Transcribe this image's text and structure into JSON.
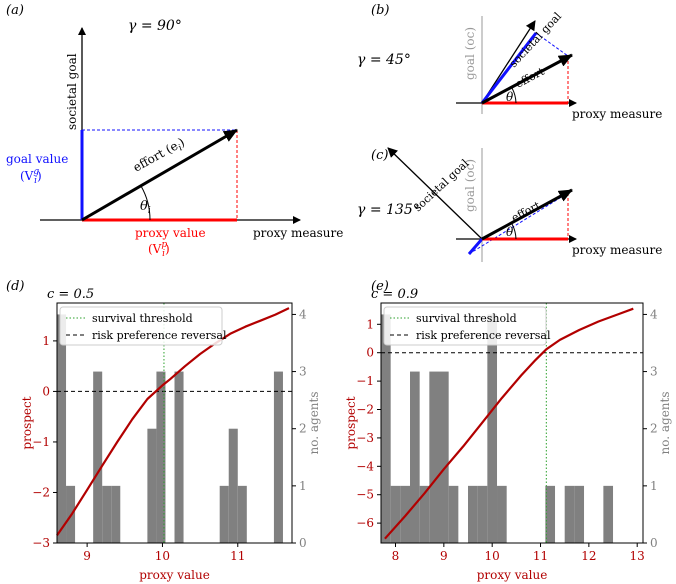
{
  "panel_labels": {
    "a": "(a)",
    "b": "(b)",
    "c": "(c)",
    "d": "(d)",
    "e": "(e)"
  },
  "colors": {
    "goal": "#1010ff",
    "proxy": "#ff0000",
    "effort": "#000000",
    "prospect": "#b20000",
    "bars": "#808080",
    "threshold": "#2ca02c"
  },
  "diagram_a": {
    "gamma": "γ = 90°",
    "xlabel": "proxy measure",
    "ylabel": "societal goal",
    "effort": "effort (e",
    "effort_sub": "i",
    "theta": "θ",
    "theta_sub": "i",
    "goal_label": "goal value",
    "goal_sym": "(V",
    "goal_sup": "g",
    "goal_sub": "i",
    "proxy_label": "proxy value",
    "proxy_sym": "(V",
    "proxy_sup": "p",
    "proxy_sub": "i",
    "close": ")"
  },
  "diagram_b": {
    "gamma": "γ = 45°",
    "xlabel": "proxy measure",
    "goal_axis": "goal (oc)",
    "goal_label": "societal goal",
    "effort": "effort",
    "theta": "θ"
  },
  "diagram_c": {
    "gamma": "γ = 135°",
    "xlabel": "proxy measure",
    "goal_axis": "goal (oc)",
    "goal_label": "societal goal",
    "effort": "effort",
    "theta": "θ"
  },
  "chart_data": [
    {
      "type": "bar",
      "panel": "d",
      "title": "c = 0.5",
      "xlabel": "proxy value",
      "ylabel": "prospect",
      "y2label": "no. agents",
      "xlim": [
        8.6,
        11.72
      ],
      "ylim": [
        -3,
        1.75
      ],
      "y2lim": [
        0,
        4.2
      ],
      "xticks": [
        9,
        10,
        11
      ],
      "yticks": [
        -3,
        -2,
        -1,
        0,
        1
      ],
      "y2ticks": [
        0,
        1,
        2,
        3,
        4
      ],
      "bins": [
        8.6,
        8.72,
        8.84,
        8.96,
        9.08,
        9.2,
        9.32,
        9.44,
        9.56,
        9.68,
        9.8,
        9.92,
        10.04,
        10.16,
        10.28,
        10.4,
        10.52,
        10.64,
        10.76,
        10.88,
        11,
        11.12,
        11.24,
        11.36,
        11.48,
        11.6
      ],
      "counts": [
        4,
        1,
        0,
        0,
        3,
        1,
        1,
        0,
        0,
        0,
        2,
        3,
        0,
        3,
        0,
        0,
        0,
        0,
        1,
        2,
        1,
        0,
        0,
        0,
        3
      ],
      "prospect_x": [
        8.6,
        8.8,
        9.0,
        9.2,
        9.4,
        9.6,
        9.8,
        10.0,
        10.1,
        10.3,
        10.5,
        10.7,
        10.9,
        11.1,
        11.3,
        11.5,
        11.68
      ],
      "prospect_y": [
        -2.85,
        -2.42,
        -1.95,
        -1.47,
        -1.0,
        -0.55,
        -0.15,
        0.12,
        0.24,
        0.5,
        0.74,
        0.95,
        1.14,
        1.28,
        1.4,
        1.52,
        1.65
      ],
      "survival_threshold": 10.02,
      "reversal": 0,
      "legend": [
        "survival threshold",
        "risk preference reversal"
      ]
    },
    {
      "type": "bar",
      "panel": "e",
      "title": "c = 0.9",
      "xlabel": "proxy value",
      "ylabel": "prospect",
      "y2label": "no. agents",
      "xlim": [
        7.7,
        13.12
      ],
      "ylim": [
        -6.7,
        1.75
      ],
      "y2lim": [
        0,
        4.2
      ],
      "xticks": [
        8,
        9,
        10,
        11,
        12,
        13
      ],
      "yticks": [
        -6,
        -5,
        -4,
        -3,
        -2,
        -1,
        0,
        1
      ],
      "y2ticks": [
        0,
        1,
        2,
        3,
        4
      ],
      "bins": [
        7.7,
        7.9,
        8.1,
        8.3,
        8.5,
        8.7,
        8.9,
        9.1,
        9.3,
        9.5,
        9.7,
        9.9,
        10.1,
        10.3,
        10.5,
        10.7,
        10.9,
        11.1,
        11.3,
        11.5,
        11.7,
        11.9,
        12.1,
        12.3,
        12.5,
        12.7,
        12.9
      ],
      "counts": [
        4,
        1,
        1,
        3,
        1,
        3,
        3,
        1,
        0,
        1,
        1,
        4,
        1,
        0,
        0,
        0,
        0,
        1,
        0,
        1,
        1,
        0,
        0,
        1,
        0,
        0
      ],
      "prospect_x": [
        7.78,
        8.2,
        8.6,
        9.0,
        9.4,
        9.8,
        10.2,
        10.6,
        10.9,
        11.12,
        11.4,
        11.8,
        12.2,
        12.6,
        12.92
      ],
      "prospect_y": [
        -6.55,
        -5.75,
        -4.95,
        -4.1,
        -3.3,
        -2.45,
        -1.6,
        -0.8,
        -0.25,
        0.12,
        0.45,
        0.8,
        1.1,
        1.35,
        1.55
      ],
      "survival_threshold": 11.12,
      "reversal": 0,
      "legend": [
        "survival threshold",
        "risk preference reversal"
      ]
    }
  ]
}
